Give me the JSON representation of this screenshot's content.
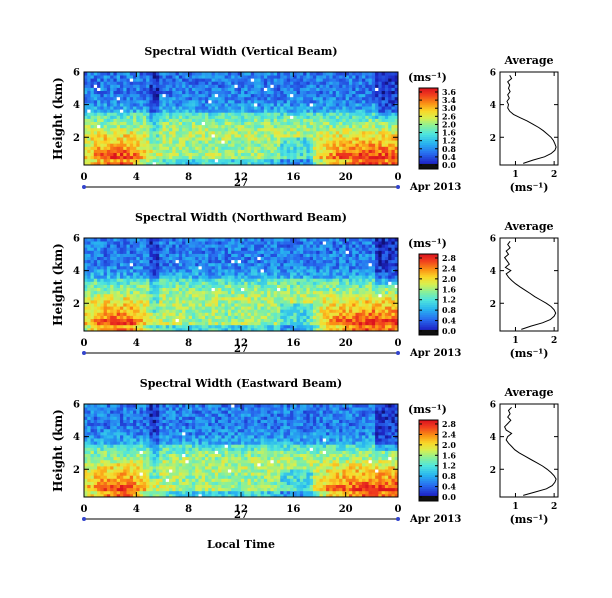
{
  "figure": {
    "month_label": "Apr 2013",
    "xlabel": "Local Time",
    "day_label": "27",
    "colors": {
      "background": "#ffffff",
      "axis": "#000000",
      "profile_line": "#000000",
      "date_marker": "#3344cc"
    }
  },
  "chart_data": [
    {
      "type": "heatmap",
      "title": "Spectral Width (Vertical Beam)",
      "xlabel": "",
      "ylabel": "Height (km)",
      "x_ticks": [
        "0",
        "4",
        "8",
        "12",
        "16",
        "20",
        "0"
      ],
      "xlim": [
        0,
        24
      ],
      "y_ticks": [
        "2",
        "4",
        "6"
      ],
      "ylim": [
        0.3,
        6.0
      ],
      "colorbar": {
        "unit_label": "(ms⁻¹)",
        "tick_labels": [
          "3.6",
          "3.4",
          "3.0",
          "2.6",
          "2.0",
          "1.6",
          "1.2",
          "0.8",
          "0.4",
          "0.0"
        ],
        "range": [
          0.0,
          3.6
        ]
      },
      "series": [
        {
          "region": "below ~1 km, morning (0-5 LT)",
          "value_range": [
            1.6,
            3.4
          ]
        },
        {
          "region": "below ~1 km, 20-24 LT",
          "value_range": [
            1.6,
            3.4
          ]
        },
        {
          "region": "1.5-3 km",
          "value_range": [
            0.8,
            1.4
          ]
        },
        {
          "region": "above 3.5 km",
          "value_range": [
            0.4,
            0.8
          ]
        }
      ],
      "profile": {
        "title": "Average",
        "xlabel": "(ms⁻¹)",
        "x_ticks": [
          "1",
          "2"
        ],
        "xlim": [
          0.6,
          2.1
        ],
        "y_ticks": [
          "2",
          "4",
          "6"
        ],
        "ylim": [
          0.3,
          6.0
        ],
        "points": [
          {
            "h": 0.4,
            "v": 1.2
          },
          {
            "h": 0.6,
            "v": 1.45
          },
          {
            "h": 0.8,
            "v": 1.75
          },
          {
            "h": 1.0,
            "v": 1.92
          },
          {
            "h": 1.2,
            "v": 2.02
          },
          {
            "h": 1.4,
            "v": 2.05
          },
          {
            "h": 1.6,
            "v": 2.02
          },
          {
            "h": 1.8,
            "v": 1.98
          },
          {
            "h": 2.0,
            "v": 1.92
          },
          {
            "h": 2.2,
            "v": 1.82
          },
          {
            "h": 2.4,
            "v": 1.72
          },
          {
            "h": 2.6,
            "v": 1.6
          },
          {
            "h": 2.8,
            "v": 1.45
          },
          {
            "h": 3.0,
            "v": 1.3
          },
          {
            "h": 3.2,
            "v": 1.12
          },
          {
            "h": 3.4,
            "v": 0.95
          },
          {
            "h": 3.6,
            "v": 0.85
          },
          {
            "h": 3.8,
            "v": 0.8
          },
          {
            "h": 4.0,
            "v": 0.82
          },
          {
            "h": 4.2,
            "v": 0.78
          },
          {
            "h": 4.4,
            "v": 0.84
          },
          {
            "h": 4.6,
            "v": 0.8
          },
          {
            "h": 4.8,
            "v": 0.86
          },
          {
            "h": 5.0,
            "v": 0.82
          },
          {
            "h": 5.2,
            "v": 0.85
          },
          {
            "h": 5.4,
            "v": 0.8
          },
          {
            "h": 5.6,
            "v": 0.9
          },
          {
            "h": 5.8,
            "v": 0.85
          }
        ]
      }
    },
    {
      "type": "heatmap",
      "title": "Spectral Width (Northward Beam)",
      "xlabel": "",
      "ylabel": "Height (km)",
      "x_ticks": [
        "0",
        "4",
        "8",
        "12",
        "16",
        "20",
        "0"
      ],
      "xlim": [
        0,
        24
      ],
      "y_ticks": [
        "2",
        "4",
        "6"
      ],
      "ylim": [
        0.3,
        6.0
      ],
      "colorbar": {
        "unit_label": "(ms⁻¹)",
        "tick_labels": [
          "2.8",
          "2.4",
          "2.0",
          "1.6",
          "1.2",
          "0.8",
          "0.4",
          "0.0"
        ],
        "range": [
          0.0,
          2.8
        ]
      },
      "series": [
        {
          "region": "below ~1 km, morning (0-5 LT)",
          "value_range": [
            1.6,
            2.8
          ]
        },
        {
          "region": "below ~1 km, 18-24 LT",
          "value_range": [
            1.6,
            2.8
          ]
        },
        {
          "region": "1.5-3 km",
          "value_range": [
            0.8,
            1.2
          ]
        },
        {
          "region": "above 3.5 km",
          "value_range": [
            0.4,
            0.8
          ]
        }
      ],
      "profile": {
        "title": "Average",
        "xlabel": "(ms⁻¹)",
        "x_ticks": [
          "1",
          "2"
        ],
        "xlim": [
          0.6,
          2.1
        ],
        "y_ticks": [
          "2",
          "4",
          "6"
        ],
        "ylim": [
          0.3,
          6.0
        ],
        "points": [
          {
            "h": 0.4,
            "v": 1.15
          },
          {
            "h": 0.6,
            "v": 1.4
          },
          {
            "h": 0.8,
            "v": 1.7
          },
          {
            "h": 1.0,
            "v": 1.9
          },
          {
            "h": 1.2,
            "v": 2.0
          },
          {
            "h": 1.4,
            "v": 2.04
          },
          {
            "h": 1.6,
            "v": 2.0
          },
          {
            "h": 1.8,
            "v": 1.92
          },
          {
            "h": 2.0,
            "v": 1.8
          },
          {
            "h": 2.2,
            "v": 1.65
          },
          {
            "h": 2.4,
            "v": 1.5
          },
          {
            "h": 2.6,
            "v": 1.38
          },
          {
            "h": 2.8,
            "v": 1.25
          },
          {
            "h": 3.0,
            "v": 1.12
          },
          {
            "h": 3.2,
            "v": 1.0
          },
          {
            "h": 3.4,
            "v": 0.9
          },
          {
            "h": 3.6,
            "v": 0.82
          },
          {
            "h": 3.8,
            "v": 0.76
          },
          {
            "h": 4.0,
            "v": 0.88
          },
          {
            "h": 4.2,
            "v": 0.74
          },
          {
            "h": 4.4,
            "v": 0.84
          },
          {
            "h": 4.6,
            "v": 0.78
          },
          {
            "h": 4.8,
            "v": 0.72
          },
          {
            "h": 5.0,
            "v": 0.82
          },
          {
            "h": 5.2,
            "v": 0.76
          },
          {
            "h": 5.4,
            "v": 0.86
          },
          {
            "h": 5.6,
            "v": 0.8
          },
          {
            "h": 5.8,
            "v": 0.86
          }
        ]
      }
    },
    {
      "type": "heatmap",
      "title": "Spectral Width (Eastward Beam)",
      "xlabel": "Local Time",
      "ylabel": "Height (km)",
      "x_ticks": [
        "0",
        "4",
        "8",
        "12",
        "16",
        "20",
        "0"
      ],
      "xlim": [
        0,
        24
      ],
      "y_ticks": [
        "2",
        "4",
        "6"
      ],
      "ylim": [
        0.3,
        6.0
      ],
      "colorbar": {
        "unit_label": "(ms⁻¹)",
        "tick_labels": [
          "2.8",
          "2.4",
          "2.0",
          "1.6",
          "1.2",
          "0.8",
          "0.4",
          "0.0"
        ],
        "range": [
          0.0,
          2.8
        ]
      },
      "series": [
        {
          "region": "below ~1 km, morning (0-6 LT)",
          "value_range": [
            1.6,
            2.8
          ]
        },
        {
          "region": "below ~1 km, 18-24 LT",
          "value_range": [
            1.6,
            2.8
          ]
        },
        {
          "region": "1.5-3 km",
          "value_range": [
            0.8,
            1.2
          ]
        },
        {
          "region": "above 3.5 km",
          "value_range": [
            0.4,
            0.8
          ]
        }
      ],
      "profile": {
        "title": "Average",
        "xlabel": "(ms⁻¹)",
        "x_ticks": [
          "1",
          "2"
        ],
        "xlim": [
          0.6,
          2.1
        ],
        "y_ticks": [
          "2",
          "4",
          "6"
        ],
        "ylim": [
          0.3,
          6.0
        ],
        "points": [
          {
            "h": 0.4,
            "v": 1.2
          },
          {
            "h": 0.6,
            "v": 1.5
          },
          {
            "h": 0.8,
            "v": 1.8
          },
          {
            "h": 1.0,
            "v": 1.95
          },
          {
            "h": 1.2,
            "v": 2.02
          },
          {
            "h": 1.4,
            "v": 2.05
          },
          {
            "h": 1.6,
            "v": 2.0
          },
          {
            "h": 1.8,
            "v": 1.92
          },
          {
            "h": 2.0,
            "v": 1.82
          },
          {
            "h": 2.2,
            "v": 1.7
          },
          {
            "h": 2.4,
            "v": 1.55
          },
          {
            "h": 2.6,
            "v": 1.4
          },
          {
            "h": 2.8,
            "v": 1.25
          },
          {
            "h": 3.0,
            "v": 1.1
          },
          {
            "h": 3.2,
            "v": 0.98
          },
          {
            "h": 3.4,
            "v": 0.9
          },
          {
            "h": 3.6,
            "v": 0.82
          },
          {
            "h": 3.8,
            "v": 0.76
          },
          {
            "h": 4.0,
            "v": 0.8
          },
          {
            "h": 4.2,
            "v": 0.9
          },
          {
            "h": 4.4,
            "v": 0.76
          },
          {
            "h": 4.6,
            "v": 0.72
          },
          {
            "h": 4.8,
            "v": 0.8
          },
          {
            "h": 5.0,
            "v": 0.88
          },
          {
            "h": 5.2,
            "v": 0.8
          },
          {
            "h": 5.4,
            "v": 0.86
          },
          {
            "h": 5.6,
            "v": 0.82
          },
          {
            "h": 5.8,
            "v": 0.9
          }
        ]
      }
    }
  ]
}
